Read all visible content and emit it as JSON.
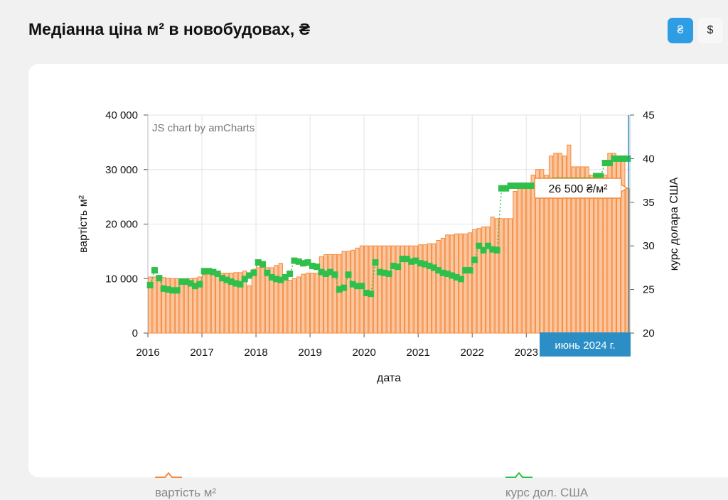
{
  "page": {
    "title": "Медіанна ціна м² в новобудовах, ₴"
  },
  "currency": {
    "uah_label": "₴",
    "usd_label": "$"
  },
  "watermark": "JS chart by amCharts",
  "tooltip": {
    "value_label": "26 500 ₴/м²",
    "date_label": "июнь 2024 г."
  },
  "legend": [
    {
      "name": "вартість м²",
      "color": "#f5883a"
    },
    {
      "name": "курс дол. США",
      "color": "#2fbf4a"
    }
  ],
  "chart_data": {
    "type": "bar",
    "title": "",
    "xlabel": "дата",
    "ylabel": "вартість м²",
    "y2label": "курс долара США",
    "ylim": [
      0,
      40000
    ],
    "y2lim": [
      20,
      45
    ],
    "yticks": [
      "0",
      "10 000",
      "20 000",
      "30 000",
      "40 000"
    ],
    "y2ticks": [
      "20",
      "25",
      "30",
      "35",
      "40",
      "45"
    ],
    "xticks": [
      "2016",
      "2017",
      "2018",
      "2019",
      "2020",
      "2021",
      "2022",
      "2023",
      "2024"
    ],
    "start_period": "2016-01",
    "grid": true,
    "legend_position": "bottom",
    "series": [
      {
        "name": "вартість м²",
        "kind": "bar",
        "axis": "left",
        "color": "#f5883a",
        "values": [
          10300,
          10300,
          10200,
          10200,
          10100,
          10000,
          10000,
          10000,
          10000,
          10000,
          10100,
          10300,
          10700,
          10800,
          11000,
          11000,
          11000,
          11000,
          11000,
          11100,
          11100,
          11400,
          8700,
          11700,
          12000,
          12000,
          12000,
          12000,
          12400,
          12800,
          9800,
          9700,
          10000,
          10300,
          10800,
          11000,
          11000,
          11000,
          14000,
          14400,
          14400,
          14400,
          14400,
          15000,
          15000,
          15200,
          15600,
          16000,
          16000,
          16000,
          16000,
          16000,
          16000,
          16000,
          16000,
          16000,
          16000,
          16000,
          16000,
          16000,
          16200,
          16200,
          16400,
          16400,
          17000,
          17400,
          18000,
          18000,
          18200,
          18200,
          18200,
          18400,
          19000,
          19200,
          19500,
          19500,
          21300,
          21000,
          21000,
          21000,
          21000,
          26000,
          27000,
          27000,
          27000,
          29000,
          30000,
          30000,
          29000,
          32500,
          33000,
          33000,
          32500,
          34500,
          30500,
          30500,
          30500,
          30500,
          29000,
          29000,
          29000,
          29000,
          33000,
          33000,
          32500,
          32500,
          26500
        ]
      },
      {
        "name": "курс дол. США",
        "kind": "line",
        "axis": "right",
        "color": "#2fbf4a",
        "values": [
          25.5,
          27.2,
          26.3,
          25.1,
          25.0,
          24.9,
          24.9,
          25.9,
          25.9,
          25.7,
          25.4,
          25.6,
          27.1,
          27.1,
          27.0,
          26.8,
          26.3,
          26.1,
          25.9,
          25.7,
          25.6,
          26.2,
          26.6,
          26.9,
          28.1,
          27.9,
          26.9,
          26.4,
          26.2,
          26.1,
          26.4,
          26.8,
          28.3,
          28.2,
          28.0,
          28.1,
          27.7,
          27.6,
          27.0,
          26.8,
          27.0,
          26.7,
          25.0,
          25.2,
          26.7,
          25.6,
          25.4,
          25.4,
          24.6,
          24.5,
          28.1,
          27.0,
          26.9,
          26.8,
          27.7,
          27.6,
          28.5,
          28.5,
          28.2,
          28.3,
          28.0,
          27.9,
          27.7,
          27.5,
          27.2,
          26.9,
          26.8,
          26.6,
          26.4,
          26.2,
          27.2,
          27.2,
          28.4,
          30.0,
          29.5,
          30.0,
          29.6,
          29.5,
          36.6,
          36.6,
          36.9,
          36.9,
          36.9,
          36.9,
          36.9,
          36.9,
          36.9,
          36.9,
          36.9,
          36.9,
          37.5,
          37.5,
          37.5,
          37.5,
          37.5,
          37.5,
          37.5,
          37.5,
          37.5,
          38.0,
          38.0,
          39.5,
          39.5,
          40.0,
          40.0,
          40.0,
          40.0
        ]
      }
    ]
  }
}
